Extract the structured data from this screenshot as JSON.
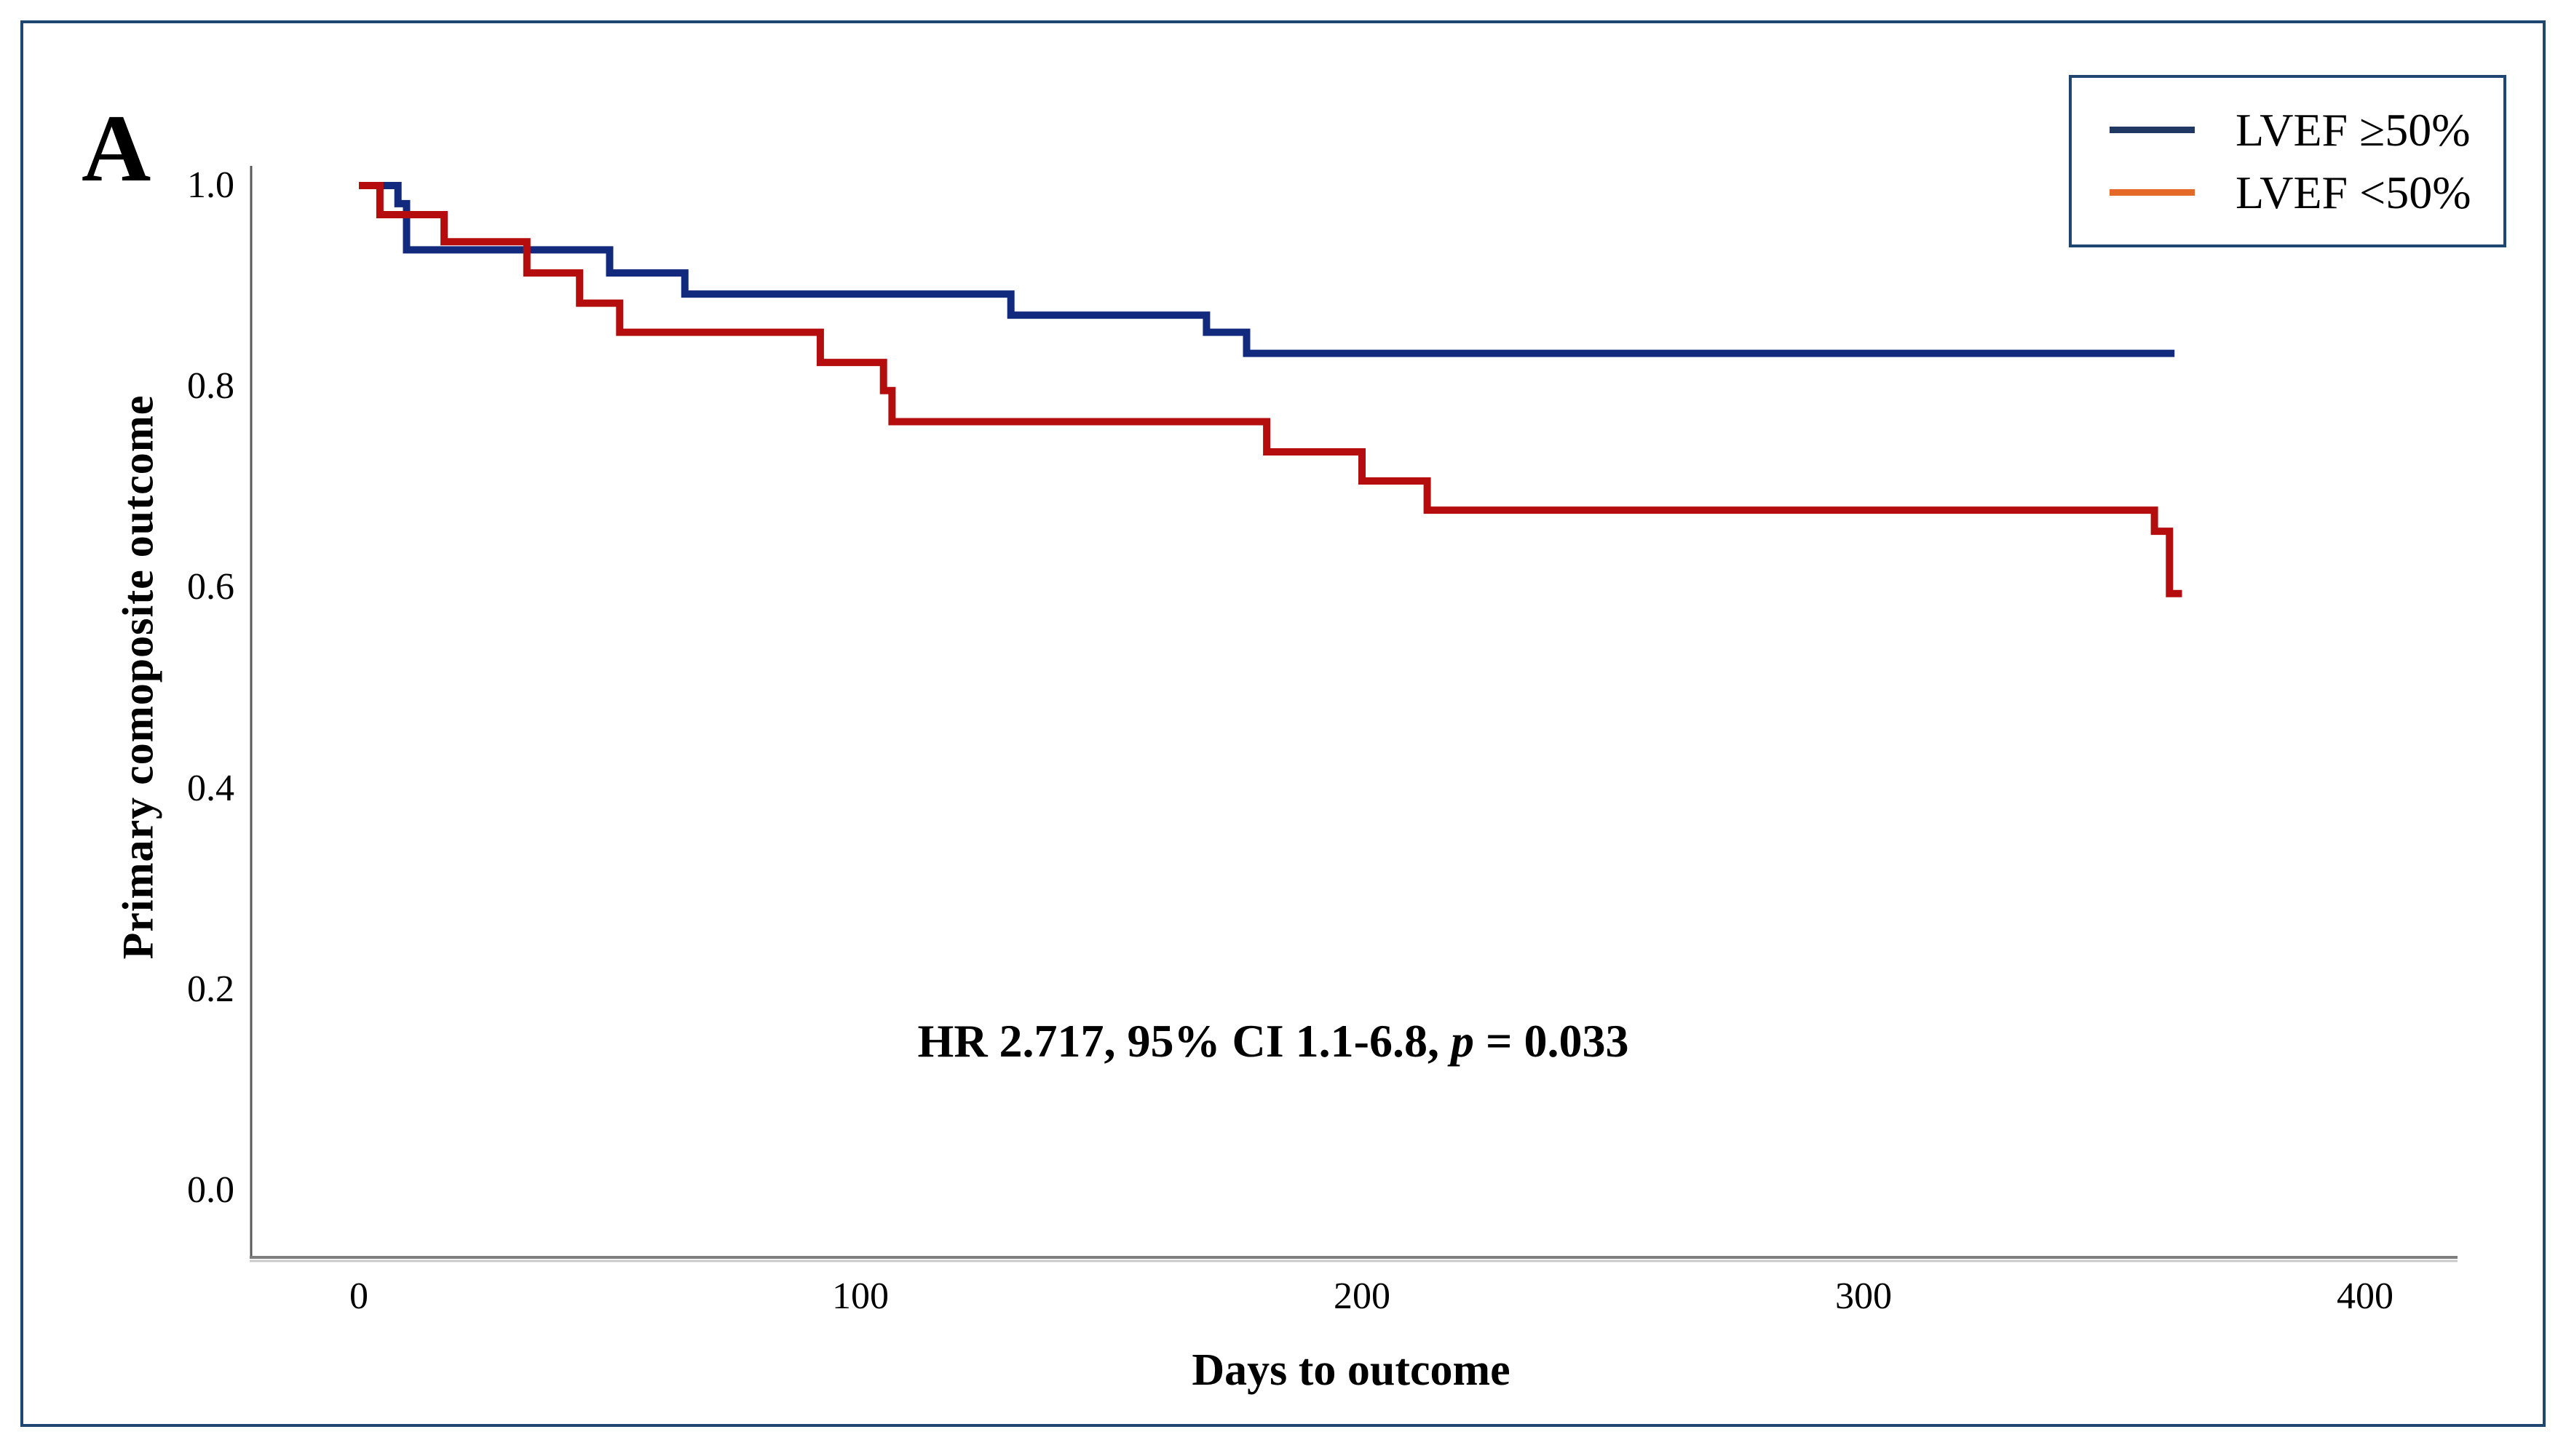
{
  "figure": {
    "panel_label": "A",
    "border_color": "#1f4670",
    "background": "#ffffff"
  },
  "legend": {
    "position": "top-right",
    "items": [
      {
        "label": "LVEF ≥50%",
        "swatch_color": "#1f3864"
      },
      {
        "label": "LVEF <50%",
        "swatch_color": "#e56a28"
      }
    ]
  },
  "annotation": {
    "prefix": "HR 2.717, 95% CI 1.1-6.8, ",
    "p_symbol": "p",
    "suffix": " = 0.033"
  },
  "axes": {
    "x_label": "Days to outcome",
    "y_label": "Primary comoposite outcome",
    "x_tick_labels": [
      "0",
      "100",
      "200",
      "300",
      "400"
    ],
    "y_tick_labels": [
      "1.0",
      "0.8",
      "0.6",
      "0.4",
      "0.2",
      "0.0"
    ]
  },
  "chart_data": {
    "type": "line",
    "subtype": "kaplan-meier-step",
    "title": "",
    "xlabel": "Days to outcome",
    "ylabel": "Primary comoposite outcome",
    "xlim": [
      0,
      400
    ],
    "ylim": [
      0.0,
      1.0
    ],
    "x_ticks": [
      0,
      100,
      200,
      300,
      400
    ],
    "y_ticks": [
      1.0,
      0.8,
      0.6,
      0.4,
      0.2,
      0.0
    ],
    "grid": false,
    "legend_position": "top-right",
    "annotation": "HR 2.717, 95% CI 1.1-6.8, p = 0.033",
    "series": [
      {
        "name": "LVEF ≥50%",
        "color": "#122a7d",
        "points": [
          [
            0,
            1.0
          ],
          [
            7.8,
            1.0
          ],
          [
            7.8,
            0.982
          ],
          [
            9.5,
            0.982
          ],
          [
            9.5,
            0.936
          ],
          [
            50,
            0.936
          ],
          [
            50,
            0.913
          ],
          [
            65,
            0.913
          ],
          [
            65,
            0.892
          ],
          [
            130,
            0.892
          ],
          [
            130,
            0.871
          ],
          [
            169,
            0.871
          ],
          [
            169,
            0.854
          ],
          [
            177,
            0.854
          ],
          [
            177,
            0.833
          ],
          [
            362,
            0.833
          ]
        ]
      },
      {
        "name": "LVEF <50%",
        "color": "#b50d0d",
        "points": [
          [
            0,
            1.0
          ],
          [
            4.2,
            1.0
          ],
          [
            4.2,
            0.971
          ],
          [
            17,
            0.971
          ],
          [
            17,
            0.944
          ],
          [
            33.5,
            0.944
          ],
          [
            33.5,
            0.913
          ],
          [
            44,
            0.913
          ],
          [
            44,
            0.883
          ],
          [
            52,
            0.883
          ],
          [
            52,
            0.854
          ],
          [
            92,
            0.854
          ],
          [
            92,
            0.824
          ],
          [
            104.6,
            0.824
          ],
          [
            104.6,
            0.796
          ],
          [
            106.3,
            0.796
          ],
          [
            106.3,
            0.765
          ],
          [
            181,
            0.765
          ],
          [
            181,
            0.735
          ],
          [
            200,
            0.735
          ],
          [
            200,
            0.706
          ],
          [
            213,
            0.706
          ],
          [
            213,
            0.677
          ],
          [
            358,
            0.677
          ],
          [
            358,
            0.656
          ],
          [
            361,
            0.656
          ],
          [
            361,
            0.594
          ],
          [
            363.5,
            0.594
          ]
        ]
      }
    ]
  }
}
